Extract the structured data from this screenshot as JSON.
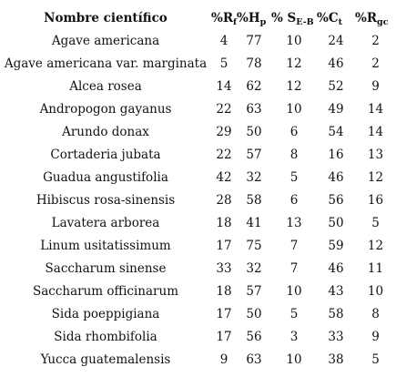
{
  "table": {
    "headers": [
      {
        "main": "Nombre científico",
        "sub": ""
      },
      {
        "main": "%R",
        "sub": "f"
      },
      {
        "main": "%H",
        "sub": "p"
      },
      {
        "main": "% S",
        "sub": "E-B"
      },
      {
        "main": "%C",
        "sub": "t"
      },
      {
        "main": "%R",
        "sub": "gc"
      }
    ],
    "rows": [
      [
        "Agave americana",
        "4",
        "77",
        "10",
        "24",
        "2"
      ],
      [
        "Agave americana var. marginata",
        "5",
        "78",
        "12",
        "46",
        "2"
      ],
      [
        "Alcea rosea",
        "14",
        "62",
        "12",
        "52",
        "9"
      ],
      [
        "Andropogon gayanus",
        "22",
        "63",
        "10",
        "49",
        "14"
      ],
      [
        "Arundo donax",
        "29",
        "50",
        "6",
        "54",
        "14"
      ],
      [
        "Cortaderia jubata",
        "22",
        "57",
        "8",
        "16",
        "13"
      ],
      [
        "Guadua angustifolia",
        "42",
        "32",
        "5",
        "46",
        "12"
      ],
      [
        "Hibiscus rosa-sinensis",
        "28",
        "58",
        "6",
        "56",
        "16"
      ],
      [
        "Lavatera arborea",
        "18",
        "41",
        "13",
        "50",
        "5"
      ],
      [
        "Linum usitatissimum",
        "17",
        "75",
        "7",
        "59",
        "12"
      ],
      [
        "Saccharum sinense",
        "33",
        "32",
        "7",
        "46",
        "11"
      ],
      [
        "Saccharum officinarum",
        "18",
        "57",
        "10",
        "43",
        "10"
      ],
      [
        "Sida poeppigiana",
        "17",
        "50",
        "5",
        "58",
        "8"
      ],
      [
        "Sida rhombifolia",
        "17",
        "56",
        "3",
        "33",
        "9"
      ],
      [
        "Yucca guatemalensis",
        "9",
        "63",
        "10",
        "38",
        "5"
      ]
    ]
  }
}
